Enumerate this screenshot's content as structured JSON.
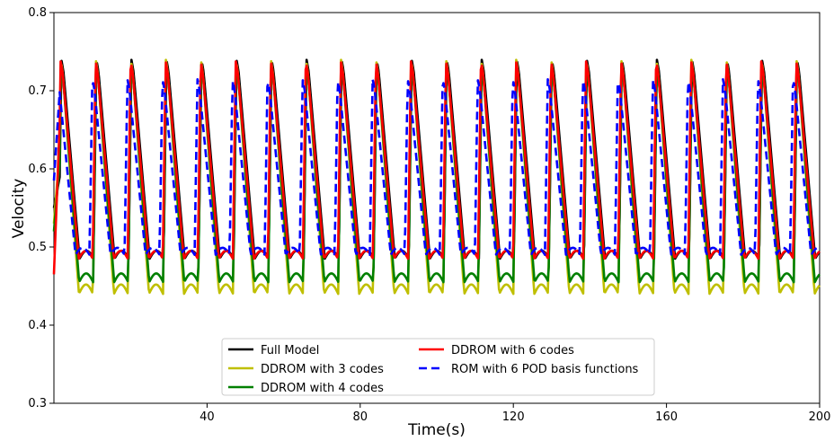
{
  "chart_data": {
    "type": "line",
    "title": "",
    "xlabel": "Time(s)",
    "ylabel": "Velocity",
    "xlim": [
      0,
      200
    ],
    "ylim": [
      0.3,
      0.8
    ],
    "x_ticks": [
      40,
      80,
      120,
      160,
      200
    ],
    "y_ticks": [
      0.3,
      0.4,
      0.5,
      0.6,
      0.7,
      0.8
    ],
    "x_tick_labels": [
      "40",
      "80",
      "120",
      "160",
      "200"
    ],
    "y_tick_labels": [
      "0.3",
      "0.4",
      "0.5",
      "0.6",
      "0.7",
      "0.8"
    ],
    "grid": false,
    "legend_position": "bottom-center",
    "legend_columns": 2,
    "period": 9.15,
    "series": [
      {
        "name": "Full Model",
        "color": "#000000",
        "dash": "solid",
        "phase": 1.2,
        "peak": 0.74,
        "trough": 0.485,
        "start_value": 0.55
      },
      {
        "name": "DDROM with 3 codes",
        "color": "#bfbf00",
        "dash": "solid",
        "phase": 1.05,
        "peak": 0.74,
        "trough": 0.44,
        "start_value": 0.53
      },
      {
        "name": "DDROM with 4 codes",
        "color": "#008000",
        "dash": "solid",
        "phase": 1.1,
        "peak": 0.735,
        "trough": 0.455,
        "start_value": 0.52
      },
      {
        "name": "DDROM with 6 codes",
        "color": "#ff0000",
        "dash": "solid",
        "phase": 1.0,
        "peak": 0.738,
        "trough": 0.485,
        "start_value": 0.465
      },
      {
        "name": "ROM with 6 POD basis functions",
        "color": "#0000ff",
        "dash": "dashed",
        "phase": 0.15,
        "peak": 0.715,
        "trough": 0.49,
        "start_value": 0.585
      }
    ]
  }
}
